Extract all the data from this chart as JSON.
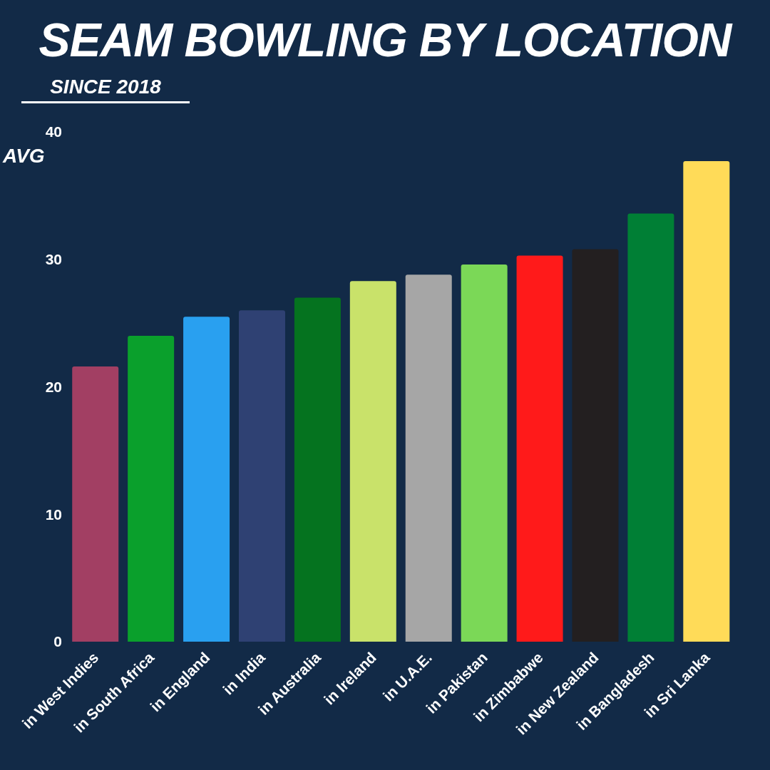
{
  "chart_data": {
    "type": "bar",
    "title": "SEAM BOWLING BY LOCATION",
    "subtitle": "SINCE 2018",
    "ylabel": "AVG",
    "categories": [
      "in West Indies",
      "in South Africa",
      "in England",
      "in India",
      "in Australia",
      "in Ireland",
      "in U.A.E.",
      "in Pakistan",
      "in Zimbabwe",
      "in New Zealand",
      "in Bangladesh",
      "in Sri Lanka"
    ],
    "values": [
      21.6,
      24.0,
      25.5,
      26.0,
      27.0,
      28.3,
      28.8,
      29.6,
      30.3,
      30.8,
      33.6,
      37.7
    ],
    "colors": [
      "#a23f63",
      "#0aa02c",
      "#29a0f0",
      "#2f4173",
      "#05731f",
      "#c9e26a",
      "#a6a6a6",
      "#7bd857",
      "#ff1a1a",
      "#231f20",
      "#007f35",
      "#ffdb58"
    ],
    "ylim": [
      0,
      40
    ],
    "yticks": [
      0,
      10,
      20,
      30,
      40
    ],
    "grid": false,
    "legend": false
  }
}
